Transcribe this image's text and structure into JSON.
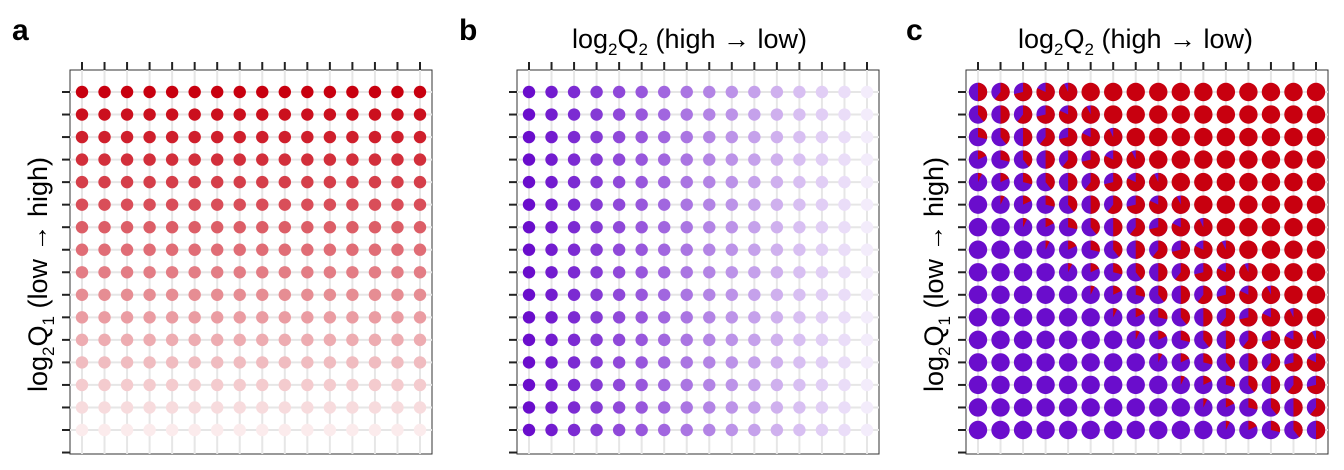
{
  "figure": {
    "panels": [
      {
        "letter": "a",
        "top_label": null,
        "left_label": "log2Q1 (low → high)",
        "mode": "q1"
      },
      {
        "letter": "b",
        "top_label": "log2Q2 (high → low)",
        "left_label": null,
        "mode": "q2"
      },
      {
        "letter": "c",
        "top_label": "log2Q2 (high → low)",
        "left_label": "log2Q1 (low → high)",
        "mode": "pie"
      }
    ]
  },
  "labels": {
    "q1_prefix": "log",
    "q1_sub": "2",
    "q1_var": "Q",
    "q1_varsub": "1",
    "q1_suffix": " (low → high)",
    "q2_prefix": "log",
    "q2_sub": "2",
    "q2_var": "Q",
    "q2_varsub": "2",
    "q2_suffix": " (high → low)",
    "panel_a": "a",
    "panel_b": "b",
    "panel_c": "c"
  },
  "chart_data": [
    {
      "type": "heatmap",
      "panel": "a",
      "description_colors": {
        "base": "#c8000f",
        "light": "#ffffff"
      },
      "grid": {
        "rows": 16,
        "cols": 16
      },
      "encoding": "Q1 intensity varies by row (top = highest log2Q1); columns constant",
      "xlabel": "",
      "ylabel": "log2Q1 (low → high)",
      "grid_lines": true
    },
    {
      "type": "heatmap",
      "panel": "b",
      "description_colors": {
        "base": "#6a0dcc",
        "light": "#ffffff"
      },
      "grid": {
        "rows": 16,
        "cols": 16
      },
      "encoding": "Q2 intensity varies by column (left = highest log2Q2); rows constant",
      "xlabel": "log2Q2 (high → low)",
      "ylabel": "",
      "grid_lines": true
    },
    {
      "type": "scatter",
      "panel": "c",
      "description_colors": {
        "q1": "#c8000f",
        "q2": "#6a0dcc"
      },
      "grid": {
        "rows": 16,
        "cols": 16
      },
      "encoding": "pie glyphs showing Q1 (red) vs Q2 (purple) share",
      "xlabel": "log2Q2 (high → low)",
      "ylabel": "log2Q1 (low → high)",
      "grid_lines": true
    }
  ]
}
